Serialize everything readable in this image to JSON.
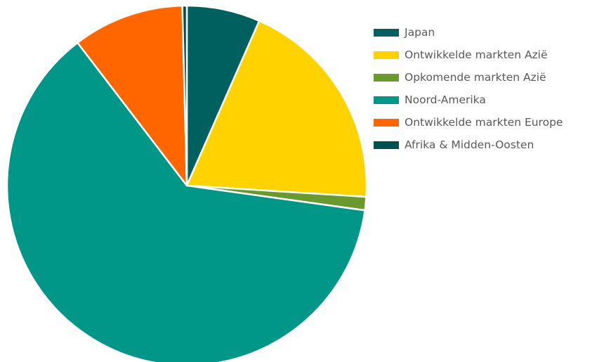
{
  "chart_data": {
    "type": "pie",
    "title": "",
    "legend_position": "right",
    "slices": [
      {
        "label": "Japan",
        "value": 6.6,
        "color": "#006060"
      },
      {
        "label": "Ontwikkelde markten Azië",
        "value": 19.4,
        "color": "#FFD200"
      },
      {
        "label": "Opkomende markten Azië",
        "value": 1.2,
        "color": "#6A9A2E"
      },
      {
        "label": "Noord-Amerika",
        "value": 62.4,
        "color": "#009688"
      },
      {
        "label": "Ontwikkelde markten Europe",
        "value": 10.0,
        "color": "#FF6600"
      },
      {
        "label": "Afrika & Midden-Oosten",
        "value": 0.4,
        "color": "#00504F"
      }
    ]
  }
}
